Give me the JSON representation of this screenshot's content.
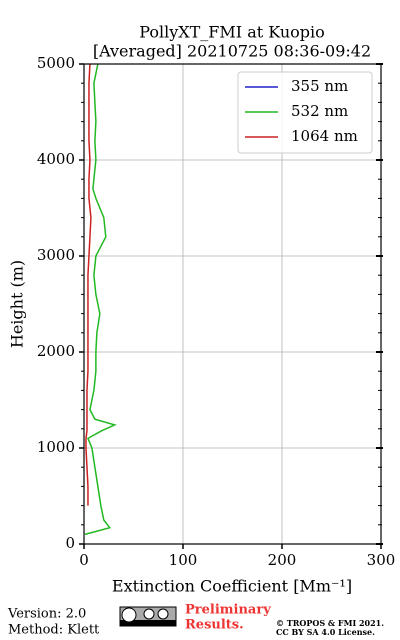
{
  "chart_data": {
    "type": "line",
    "title": [
      "PollyXT_FMI at Kuopio",
      "[Averaged] 20210725 08:36-09:42"
    ],
    "x_label": "Extinction Coefficient [Mm⁻¹]",
    "y_label": "Height (m)",
    "xlim": [
      0,
      300
    ],
    "xticks": [
      0,
      100,
      200,
      300
    ],
    "ylim": [
      0,
      5000
    ],
    "yticks": [
      0,
      1000,
      2000,
      3000,
      4000,
      5000
    ],
    "yminorticks": [
      200,
      400,
      600,
      800,
      1200,
      1400,
      1600,
      1800,
      2200,
      2400,
      2600,
      2800,
      3200,
      3400,
      3600,
      3800,
      4200,
      4400,
      4600,
      4800
    ],
    "grid": true,
    "legend": "upper right",
    "heights": [
      100,
      170,
      250,
      400,
      600,
      800,
      1000,
      1100,
      1180,
      1240,
      1300,
      1400,
      1600,
      1800,
      2000,
      2200,
      2400,
      2600,
      2800,
      3000,
      3200,
      3400,
      3600,
      3700,
      3800,
      4000,
      4200,
      4400,
      4600,
      4800,
      5000
    ],
    "series": [
      {
        "name": "355 nm",
        "color": "#2222cc",
        "values": [
          null,
          null,
          null,
          null,
          null,
          null,
          null,
          null,
          null,
          null,
          null,
          null,
          null,
          null,
          null,
          null,
          null,
          null,
          null,
          null,
          null,
          null,
          null,
          null,
          null,
          null,
          null,
          null,
          null,
          null,
          null
        ]
      },
      {
        "name": "532 nm",
        "color": "#22b822",
        "values": [
          1,
          26,
          20,
          17,
          14,
          11,
          8,
          4,
          18,
          31,
          11,
          6,
          10,
          12,
          12,
          13,
          16,
          12,
          10,
          12,
          22,
          20,
          12,
          9,
          10,
          12,
          11,
          12,
          11,
          10,
          14
        ]
      },
      {
        "name": "1064 nm",
        "color": "#cc2222",
        "values": [
          null,
          null,
          null,
          4,
          4,
          3,
          2,
          2,
          3,
          3,
          3,
          3,
          3,
          4,
          4,
          4,
          4,
          4,
          4,
          5,
          6,
          7,
          5,
          5,
          5,
          6,
          5,
          5,
          5,
          5,
          6
        ]
      }
    ]
  },
  "footer": {
    "version": "Version: 2.0",
    "method": "Method: Klett",
    "preliminary": [
      "Preliminary",
      "Results."
    ],
    "copyright": [
      "© TROPOS & FMI 2021.",
      "CC BY SA 4.0 License."
    ]
  }
}
